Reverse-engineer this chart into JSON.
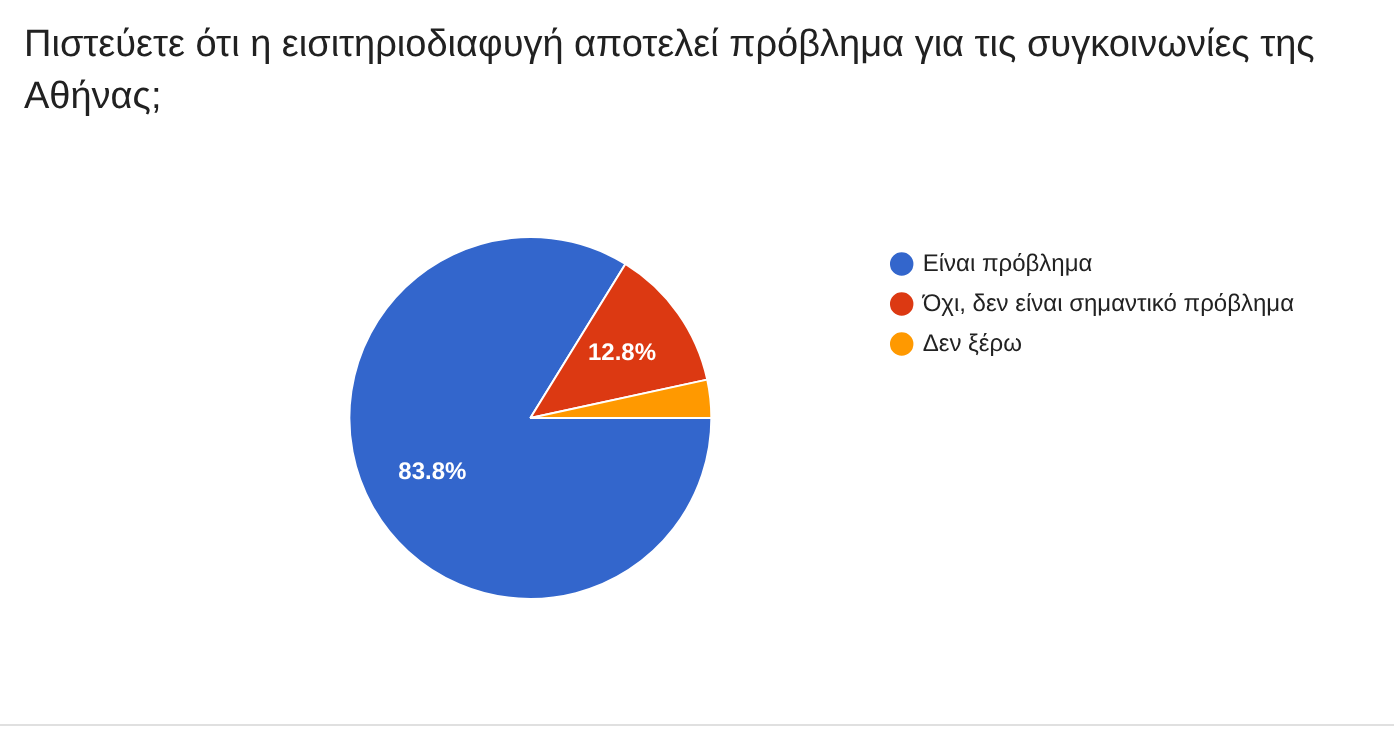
{
  "chart_data": {
    "type": "pie",
    "title": "Πιστεύετε ότι η εισιτηριοδιαφυγή αποτελεί πρόβλημα για τις συγκοινωνίες της Αθήνας;",
    "categories": [
      "Είναι πρόβλημα",
      "Όχι, δεν είναι σημαντικό πρόβλημα",
      "Δεν ξέρω"
    ],
    "values": [
      83.8,
      12.8,
      3.4
    ],
    "colors": [
      "#3366cc",
      "#dc3912",
      "#ff9900"
    ],
    "value_labels": [
      "83.8%",
      "12.8%",
      null
    ],
    "legend": "right"
  }
}
